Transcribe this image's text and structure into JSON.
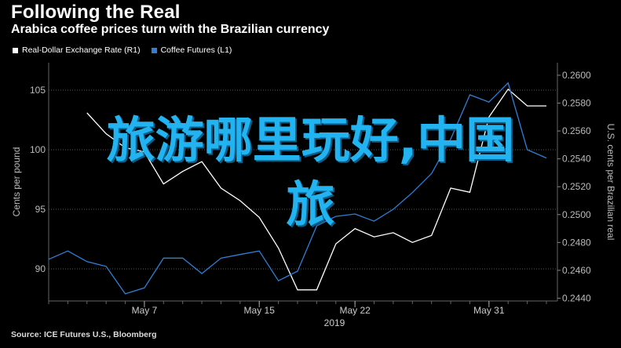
{
  "header": {
    "title": "Following the Real",
    "subtitle": "Arabica coffee prices turn with the Brazilian currency"
  },
  "legend": {
    "items": [
      {
        "label": "Real-Dollar Exchange Rate (R1)",
        "color": "#ffffff"
      },
      {
        "label": "Coffee Futures (L1)",
        "color": "#2f7fd8"
      }
    ]
  },
  "overlay": {
    "line1": "旅游哪里玩好,中国",
    "line2": "旅"
  },
  "source": "Source: ICE Futures U.S., Bloomberg",
  "chart_data": {
    "type": "line",
    "title": "Following the Real",
    "subtitle": "Arabica coffee prices turn with the Brazilian currency",
    "x_tick_labels": [
      "May 7",
      "May 15",
      "May 22",
      "May 31"
    ],
    "x_year_label": "2019",
    "x": [
      "Apr 30",
      "May 1",
      "May 2",
      "May 3",
      "May 6",
      "May 7",
      "May 8",
      "May 9",
      "May 10",
      "May 13",
      "May 14",
      "May 15",
      "May 16",
      "May 17",
      "May 20",
      "May 21",
      "May 22",
      "May 23",
      "May 24",
      "May 27",
      "May 28",
      "May 29",
      "May 30",
      "May 31",
      "Jun 3",
      "Jun 4",
      "Jun 5"
    ],
    "left_axis": {
      "label": "Cents per pound",
      "ticks": [
        90,
        95,
        100,
        105
      ],
      "range": [
        87.3,
        107.3
      ],
      "tick_labels": [
        "90",
        "95",
        "100",
        "105"
      ]
    },
    "right_axis": {
      "label": "U.S. cents per Brazilian real",
      "ticks": [
        0.244,
        0.246,
        0.248,
        0.25,
        0.252,
        0.254,
        0.256,
        0.258,
        0.26
      ],
      "range": [
        0.2438,
        0.2609
      ],
      "tick_labels": [
        "0.2440",
        "0.2460",
        "0.2480",
        "0.2500",
        "0.2520",
        "0.2540",
        "0.2560",
        "0.2580",
        "0.2600"
      ]
    },
    "series": [
      {
        "name": "Real-Dollar Exchange Rate (R1)",
        "axis": "right",
        "color": "#ffffff",
        "values": [
          null,
          null,
          0.2573,
          0.2558,
          0.2548,
          0.2545,
          0.2522,
          0.2531,
          0.2538,
          0.2519,
          0.251,
          0.2498,
          0.2476,
          0.2446,
          0.2446,
          0.2479,
          0.249,
          0.2484,
          0.2487,
          0.248,
          0.2485,
          0.2519,
          0.2516,
          0.257,
          0.259,
          0.2578,
          0.2578
        ]
      },
      {
        "name": "Coffee Futures (L1)",
        "axis": "left",
        "color": "#2f7fd8",
        "values": [
          90.8,
          91.5,
          90.6,
          90.2,
          87.9,
          88.4,
          90.9,
          90.9,
          89.6,
          90.9,
          91.2,
          91.5,
          89.0,
          89.8,
          93.6,
          94.4,
          94.6,
          94.0,
          95.0,
          96.4,
          98.0,
          100.9,
          104.6,
          104.0,
          105.6,
          100.0,
          99.3
        ]
      }
    ],
    "grid": true,
    "legend_position": "top-left"
  }
}
